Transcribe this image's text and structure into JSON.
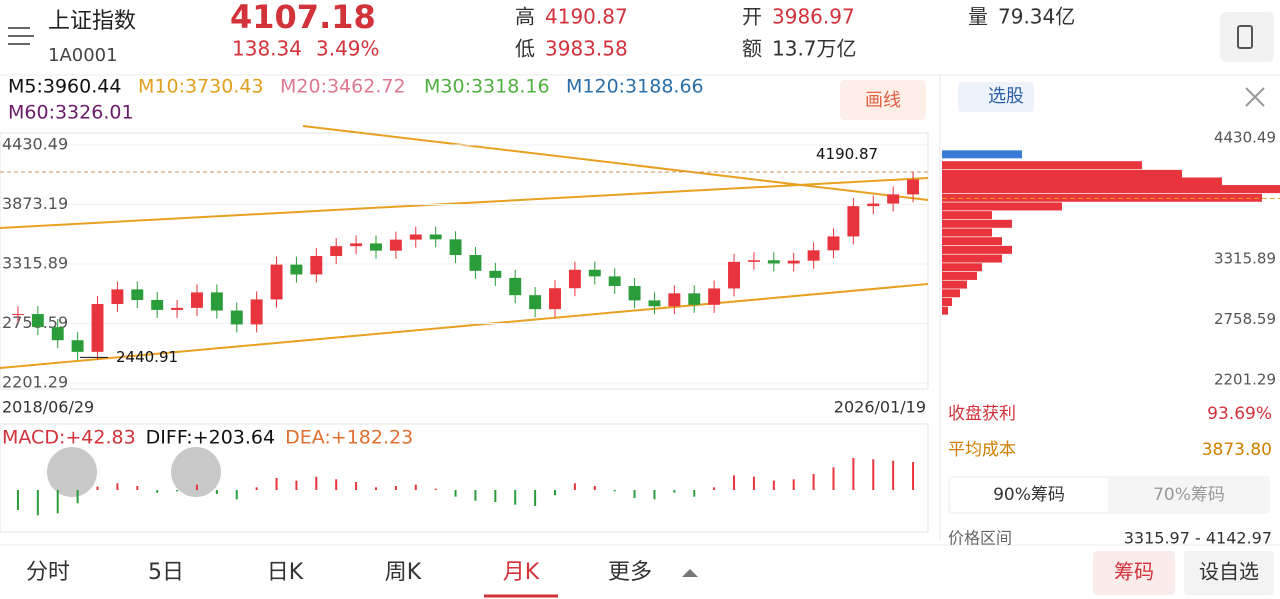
{
  "header": {
    "name": "上证指数",
    "code": "1A0001",
    "price": "4107.18",
    "change": "138.34",
    "pct": "3.49%",
    "high_label": "高",
    "high": "4190.87",
    "low_label": "低",
    "low": "3983.58",
    "open_label": "开",
    "open": "3986.97",
    "amount_label": "额",
    "amount": "13.7万亿",
    "volume_label": "量",
    "volume": "79.34亿"
  },
  "ma_legend": [
    {
      "text": "M5:3960.44",
      "color": "#111111"
    },
    {
      "text": "M10:3730.43",
      "color": "#e0a020"
    },
    {
      "text": "M20:3462.72",
      "color": "#e07890"
    },
    {
      "text": "M30:3318.16",
      "color": "#50b040"
    },
    {
      "text": "M120:3188.66",
      "color": "#2a6fa8"
    },
    {
      "text": "M60:3326.01",
      "color": "#6a1a6a"
    }
  ],
  "draw_button": "画线",
  "chart_data": {
    "type": "candlestick",
    "ylim": [
      2201.29,
      4430.49
    ],
    "yticks": [
      4430.49,
      3873.19,
      3315.89,
      2758.59,
      2201.29
    ],
    "closes": [
      2847,
      2725,
      2602,
      2493,
      2941,
      3078,
      2979,
      2886,
      2905,
      3050,
      2880,
      2750,
      2984,
      3310,
      3218,
      3391,
      3483,
      3509,
      3441,
      3544,
      3592,
      3547,
      3400,
      3252,
      3186,
      3024,
      2893,
      3089,
      3262,
      3200,
      3110,
      2975,
      2920,
      3041,
      2934,
      3087,
      3336,
      3351,
      3321,
      3347,
      3444,
      3574,
      3858,
      3882,
      3968,
      4107
    ],
    "up_color": "#e8343c",
    "down_color": "#2a9d3a",
    "annotations": [
      {
        "text": "4190.87",
        "value": 4190.87
      },
      {
        "text": "2440.91",
        "value": 2440.91
      }
    ],
    "start_date": "2018/06/29",
    "end_date": "2026/01/19"
  },
  "macd": {
    "labels": [
      {
        "text": "MACD:+42.83",
        "color": "#d2323a"
      },
      {
        "text": "DIFF:+203.64",
        "color": "#111111"
      },
      {
        "text": "DEA:+182.23",
        "color": "#e07030"
      }
    ],
    "ylim": [
      -60,
      60
    ],
    "hist": [
      -30,
      -38,
      -35,
      -20,
      5,
      10,
      6,
      -4,
      -2,
      8,
      -6,
      -14,
      4,
      18,
      14,
      20,
      16,
      12,
      4,
      6,
      8,
      2,
      -10,
      -16,
      -18,
      -22,
      -24,
      -8,
      10,
      6,
      -2,
      -12,
      -14,
      -4,
      -10,
      4,
      22,
      20,
      14,
      16,
      24,
      34,
      48,
      46,
      44,
      42
    ],
    "up_color": "#e8343c",
    "down_color": "#2a9d3a"
  },
  "right_panel": {
    "tab": "选股",
    "yticks": [
      4430.49,
      3315.89,
      2758.59,
      2201.29
    ],
    "chip_levels": [
      4280,
      4180,
      4100,
      4030,
      3960,
      3880,
      3800,
      3720,
      3640,
      3560,
      3480,
      3400,
      3320,
      3240,
      3160,
      3080,
      3000,
      2920,
      2840
    ],
    "chip_sizes": [
      80,
      200,
      240,
      280,
      340,
      320,
      120,
      50,
      70,
      50,
      60,
      70,
      60,
      40,
      35,
      25,
      18,
      10,
      6
    ],
    "profit_label": "收盘获利",
    "profit": "93.69%",
    "cost_label": "平均成本",
    "cost": "3873.80",
    "tabs": [
      "90%筹码",
      "70%筹码"
    ],
    "range_label": "价格区间",
    "range": "3315.97 - 4142.97"
  },
  "bottom_tabs": [
    "分时",
    "5日",
    "日K",
    "周K",
    "月K",
    "更多"
  ],
  "buttons": [
    "筹码",
    "设自选"
  ]
}
